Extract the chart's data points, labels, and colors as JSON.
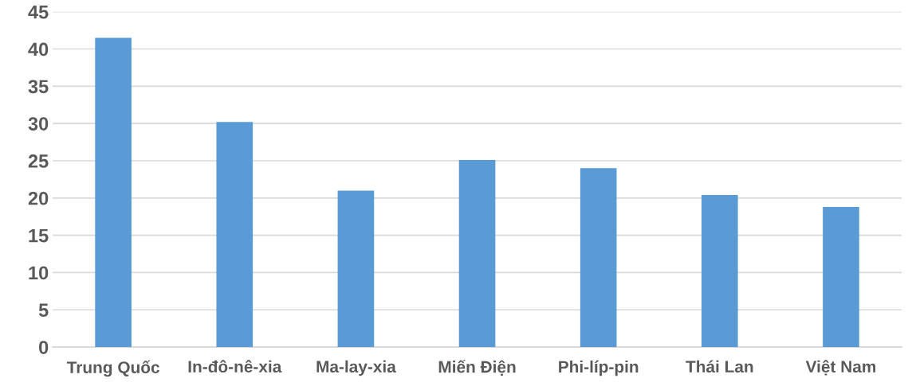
{
  "chart_data": {
    "type": "bar",
    "categories": [
      "Trung Quốc",
      "In-đô-nê-xia",
      "Ma-lay-xia",
      "Miến Điện",
      "Phi-líp-pin",
      "Thái Lan",
      "Việt Nam"
    ],
    "values": [
      41.5,
      30.2,
      21.0,
      25.1,
      24.0,
      20.4,
      18.8
    ],
    "color": "#5b9bd5",
    "ylim": [
      0,
      45
    ],
    "yticks": [
      0,
      5,
      10,
      15,
      20,
      25,
      30,
      35,
      40,
      45
    ],
    "grid": "y"
  }
}
